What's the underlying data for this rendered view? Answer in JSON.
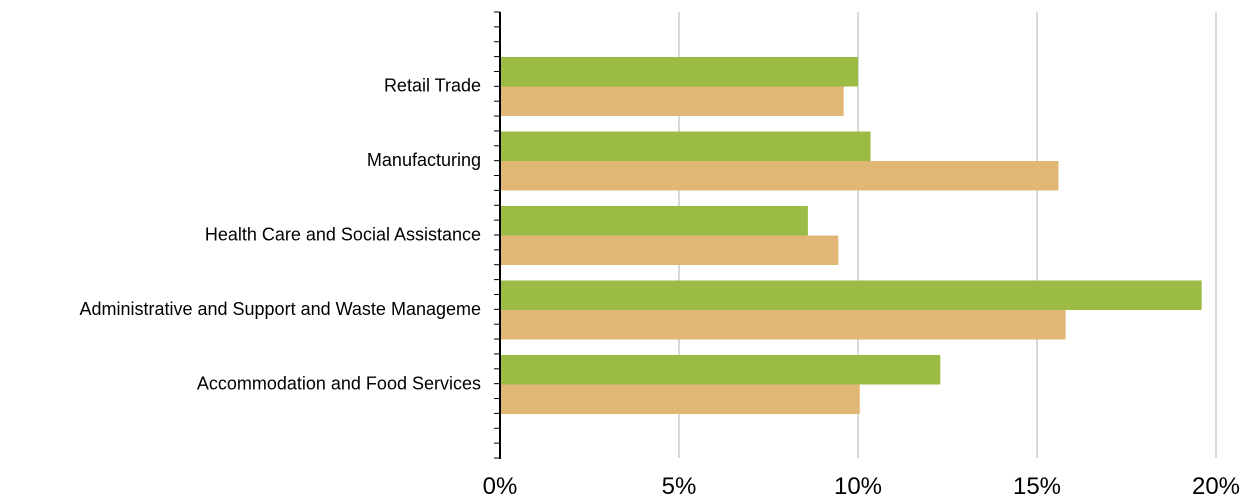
{
  "chart_data": {
    "type": "bar",
    "orientation": "horizontal",
    "categories": [
      "Retail Trade",
      "Manufacturing",
      "Health Care and Social Assistance",
      "Administrative and Support and Waste Manageme",
      "Accommodation and Food Services"
    ],
    "series": [
      {
        "color": "#9bbb44",
        "values": [
          10.0,
          10.35,
          8.6,
          19.6,
          12.3
        ]
      },
      {
        "color": "#e1b776",
        "values": [
          9.6,
          15.6,
          9.45,
          15.8,
          10.05
        ]
      }
    ],
    "xlim": [
      0,
      20
    ],
    "x_ticks": [
      0,
      5,
      10,
      15,
      20
    ],
    "x_tick_labels": [
      "0%",
      "5%",
      "10%",
      "15%",
      "20%"
    ],
    "grid": "vertical",
    "legend": "none",
    "title": "",
    "xlabel": "",
    "ylabel": ""
  }
}
